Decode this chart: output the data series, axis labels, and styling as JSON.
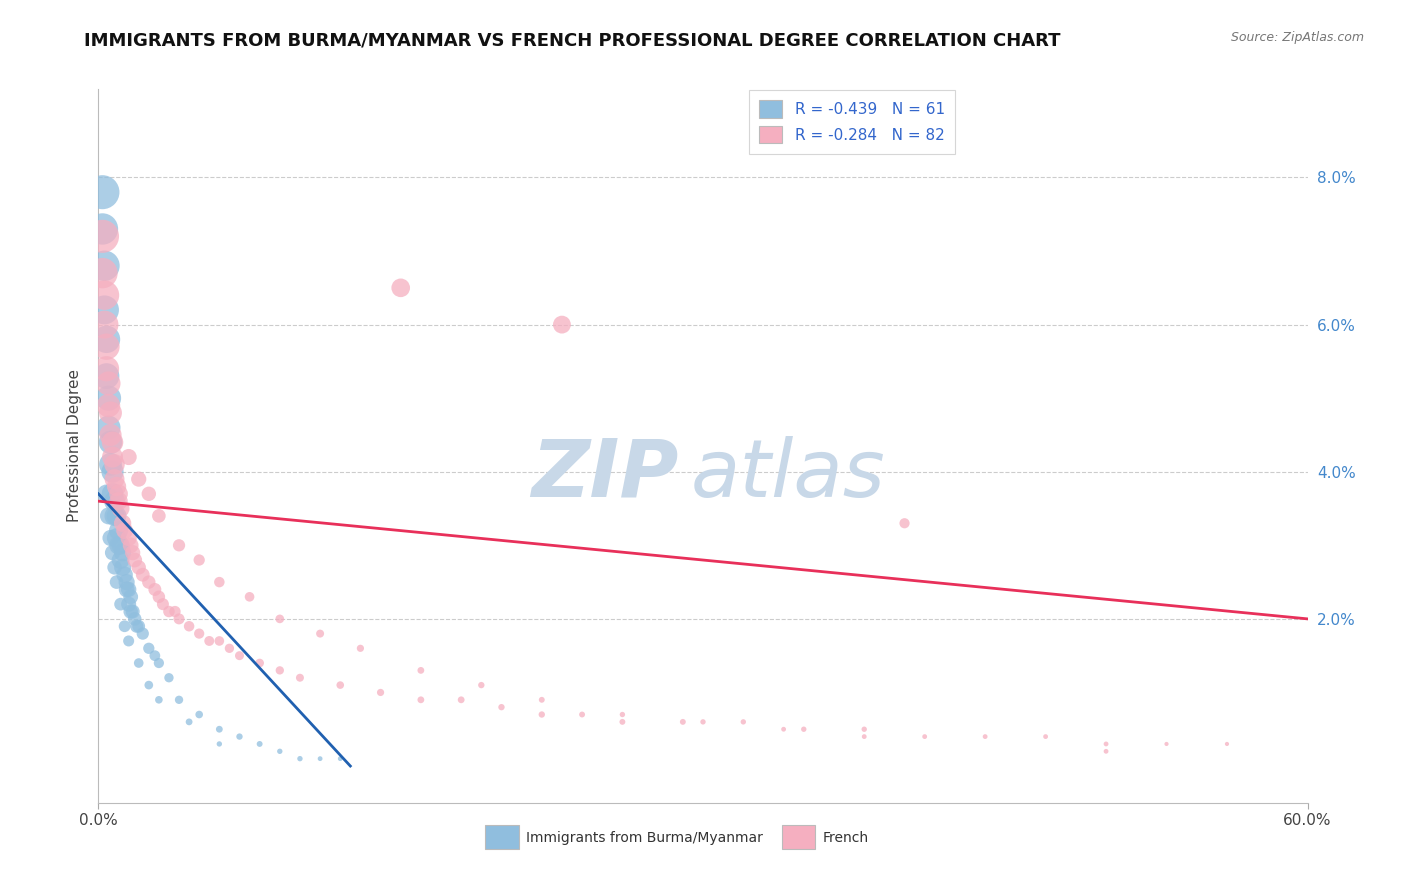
{
  "title": "IMMIGRANTS FROM BURMA/MYANMAR VS FRENCH PROFESSIONAL DEGREE CORRELATION CHART",
  "source": "Source: ZipAtlas.com",
  "ylabel": "Professional Degree",
  "xmin": 0.0,
  "xmax": 0.6,
  "ymin": -0.005,
  "ymax": 0.092,
  "right_ytick_vals": [
    0.02,
    0.04,
    0.06,
    0.08
  ],
  "right_ytick_labels": [
    "2.0%",
    "4.0%",
    "6.0%",
    "8.0%"
  ],
  "xtick_vals": [
    0.0,
    0.6
  ],
  "xtick_labels": [
    "0.0%",
    "60.0%"
  ],
  "legend_r_blue": "-0.439",
  "legend_n_blue": "61",
  "legend_r_pink": "-0.284",
  "legend_n_pink": "82",
  "blue_color": "#90bede",
  "pink_color": "#f5afc0",
  "trend_blue_color": "#2060b0",
  "trend_pink_color": "#e8305a",
  "blue_scatter_x": [
    0.002,
    0.002,
    0.003,
    0.003,
    0.004,
    0.004,
    0.005,
    0.005,
    0.006,
    0.006,
    0.007,
    0.007,
    0.008,
    0.008,
    0.009,
    0.009,
    0.01,
    0.01,
    0.011,
    0.011,
    0.012,
    0.012,
    0.013,
    0.014,
    0.014,
    0.015,
    0.015,
    0.016,
    0.016,
    0.017,
    0.018,
    0.019,
    0.02,
    0.022,
    0.025,
    0.028,
    0.03,
    0.035,
    0.04,
    0.05,
    0.06,
    0.07,
    0.08,
    0.09,
    0.1,
    0.11,
    0.12,
    0.004,
    0.005,
    0.006,
    0.007,
    0.008,
    0.009,
    0.011,
    0.013,
    0.015,
    0.02,
    0.025,
    0.03,
    0.045,
    0.06
  ],
  "blue_scatter_y": [
    0.078,
    0.073,
    0.068,
    0.062,
    0.058,
    0.053,
    0.05,
    0.046,
    0.044,
    0.041,
    0.04,
    0.037,
    0.036,
    0.034,
    0.034,
    0.031,
    0.032,
    0.03,
    0.03,
    0.028,
    0.029,
    0.027,
    0.026,
    0.025,
    0.024,
    0.024,
    0.022,
    0.023,
    0.021,
    0.021,
    0.02,
    0.019,
    0.019,
    0.018,
    0.016,
    0.015,
    0.014,
    0.012,
    0.009,
    0.007,
    0.005,
    0.004,
    0.003,
    0.002,
    0.001,
    0.001,
    0.001,
    0.037,
    0.034,
    0.031,
    0.029,
    0.027,
    0.025,
    0.022,
    0.019,
    0.017,
    0.014,
    0.011,
    0.009,
    0.006,
    0.003
  ],
  "blue_scatter_s": [
    200,
    170,
    160,
    145,
    130,
    115,
    110,
    100,
    95,
    90,
    85,
    80,
    75,
    70,
    68,
    65,
    63,
    60,
    58,
    55,
    52,
    50,
    47,
    45,
    43,
    41,
    39,
    38,
    36,
    34,
    32,
    30,
    28,
    26,
    22,
    20,
    18,
    15,
    12,
    10,
    8,
    7,
    6,
    5,
    5,
    4,
    4,
    60,
    50,
    45,
    40,
    36,
    32,
    28,
    24,
    21,
    16,
    13,
    10,
    8,
    5
  ],
  "pink_scatter_x": [
    0.002,
    0.002,
    0.003,
    0.003,
    0.004,
    0.004,
    0.005,
    0.005,
    0.006,
    0.006,
    0.007,
    0.007,
    0.008,
    0.008,
    0.009,
    0.01,
    0.01,
    0.011,
    0.012,
    0.013,
    0.015,
    0.016,
    0.017,
    0.018,
    0.02,
    0.022,
    0.025,
    0.028,
    0.03,
    0.032,
    0.035,
    0.038,
    0.04,
    0.045,
    0.05,
    0.055,
    0.06,
    0.065,
    0.07,
    0.08,
    0.09,
    0.1,
    0.12,
    0.14,
    0.16,
    0.18,
    0.2,
    0.22,
    0.24,
    0.26,
    0.29,
    0.32,
    0.35,
    0.38,
    0.41,
    0.44,
    0.47,
    0.5,
    0.53,
    0.56,
    0.015,
    0.02,
    0.025,
    0.03,
    0.04,
    0.05,
    0.06,
    0.075,
    0.09,
    0.11,
    0.13,
    0.16,
    0.19,
    0.22,
    0.26,
    0.3,
    0.34,
    0.38,
    0.15,
    0.23,
    0.4,
    0.5
  ],
  "pink_scatter_y": [
    0.072,
    0.067,
    0.064,
    0.06,
    0.057,
    0.054,
    0.052,
    0.049,
    0.048,
    0.045,
    0.044,
    0.042,
    0.041,
    0.039,
    0.038,
    0.037,
    0.036,
    0.035,
    0.033,
    0.032,
    0.031,
    0.03,
    0.029,
    0.028,
    0.027,
    0.026,
    0.025,
    0.024,
    0.023,
    0.022,
    0.021,
    0.021,
    0.02,
    0.019,
    0.018,
    0.017,
    0.017,
    0.016,
    0.015,
    0.014,
    0.013,
    0.012,
    0.011,
    0.01,
    0.009,
    0.009,
    0.008,
    0.007,
    0.007,
    0.006,
    0.006,
    0.006,
    0.005,
    0.005,
    0.004,
    0.004,
    0.004,
    0.003,
    0.003,
    0.003,
    0.042,
    0.039,
    0.037,
    0.034,
    0.03,
    0.028,
    0.025,
    0.023,
    0.02,
    0.018,
    0.016,
    0.013,
    0.011,
    0.009,
    0.007,
    0.006,
    0.005,
    0.004,
    0.065,
    0.06,
    0.033,
    0.002
  ],
  "pink_scatter_s": [
    190,
    160,
    150,
    135,
    120,
    110,
    100,
    95,
    90,
    85,
    80,
    76,
    72,
    68,
    64,
    60,
    58,
    55,
    52,
    49,
    46,
    43,
    40,
    38,
    36,
    33,
    31,
    29,
    27,
    25,
    23,
    22,
    21,
    19,
    18,
    17,
    16,
    15,
    14,
    13,
    12,
    11,
    10,
    9,
    8,
    8,
    7,
    7,
    6,
    6,
    6,
    5,
    5,
    5,
    4,
    4,
    4,
    4,
    3,
    3,
    45,
    40,
    36,
    32,
    26,
    22,
    19,
    16,
    13,
    11,
    9,
    8,
    7,
    6,
    5,
    5,
    4,
    4,
    60,
    55,
    18,
    4
  ],
  "blue_trend_x": [
    0.0,
    0.125
  ],
  "blue_trend_y": [
    0.037,
    0.0
  ],
  "pink_trend_x": [
    0.0,
    0.6
  ],
  "pink_trend_y": [
    0.036,
    0.02
  ],
  "background_color": "#ffffff",
  "grid_color": "#cccccc",
  "watermark_zip_color": "#c8d8e8",
  "watermark_atlas_color": "#c8d8e8",
  "watermark_fontsize": 58,
  "title_fontsize": 13,
  "source_fontsize": 9,
  "tick_fontsize": 11,
  "legend_fontsize": 11
}
